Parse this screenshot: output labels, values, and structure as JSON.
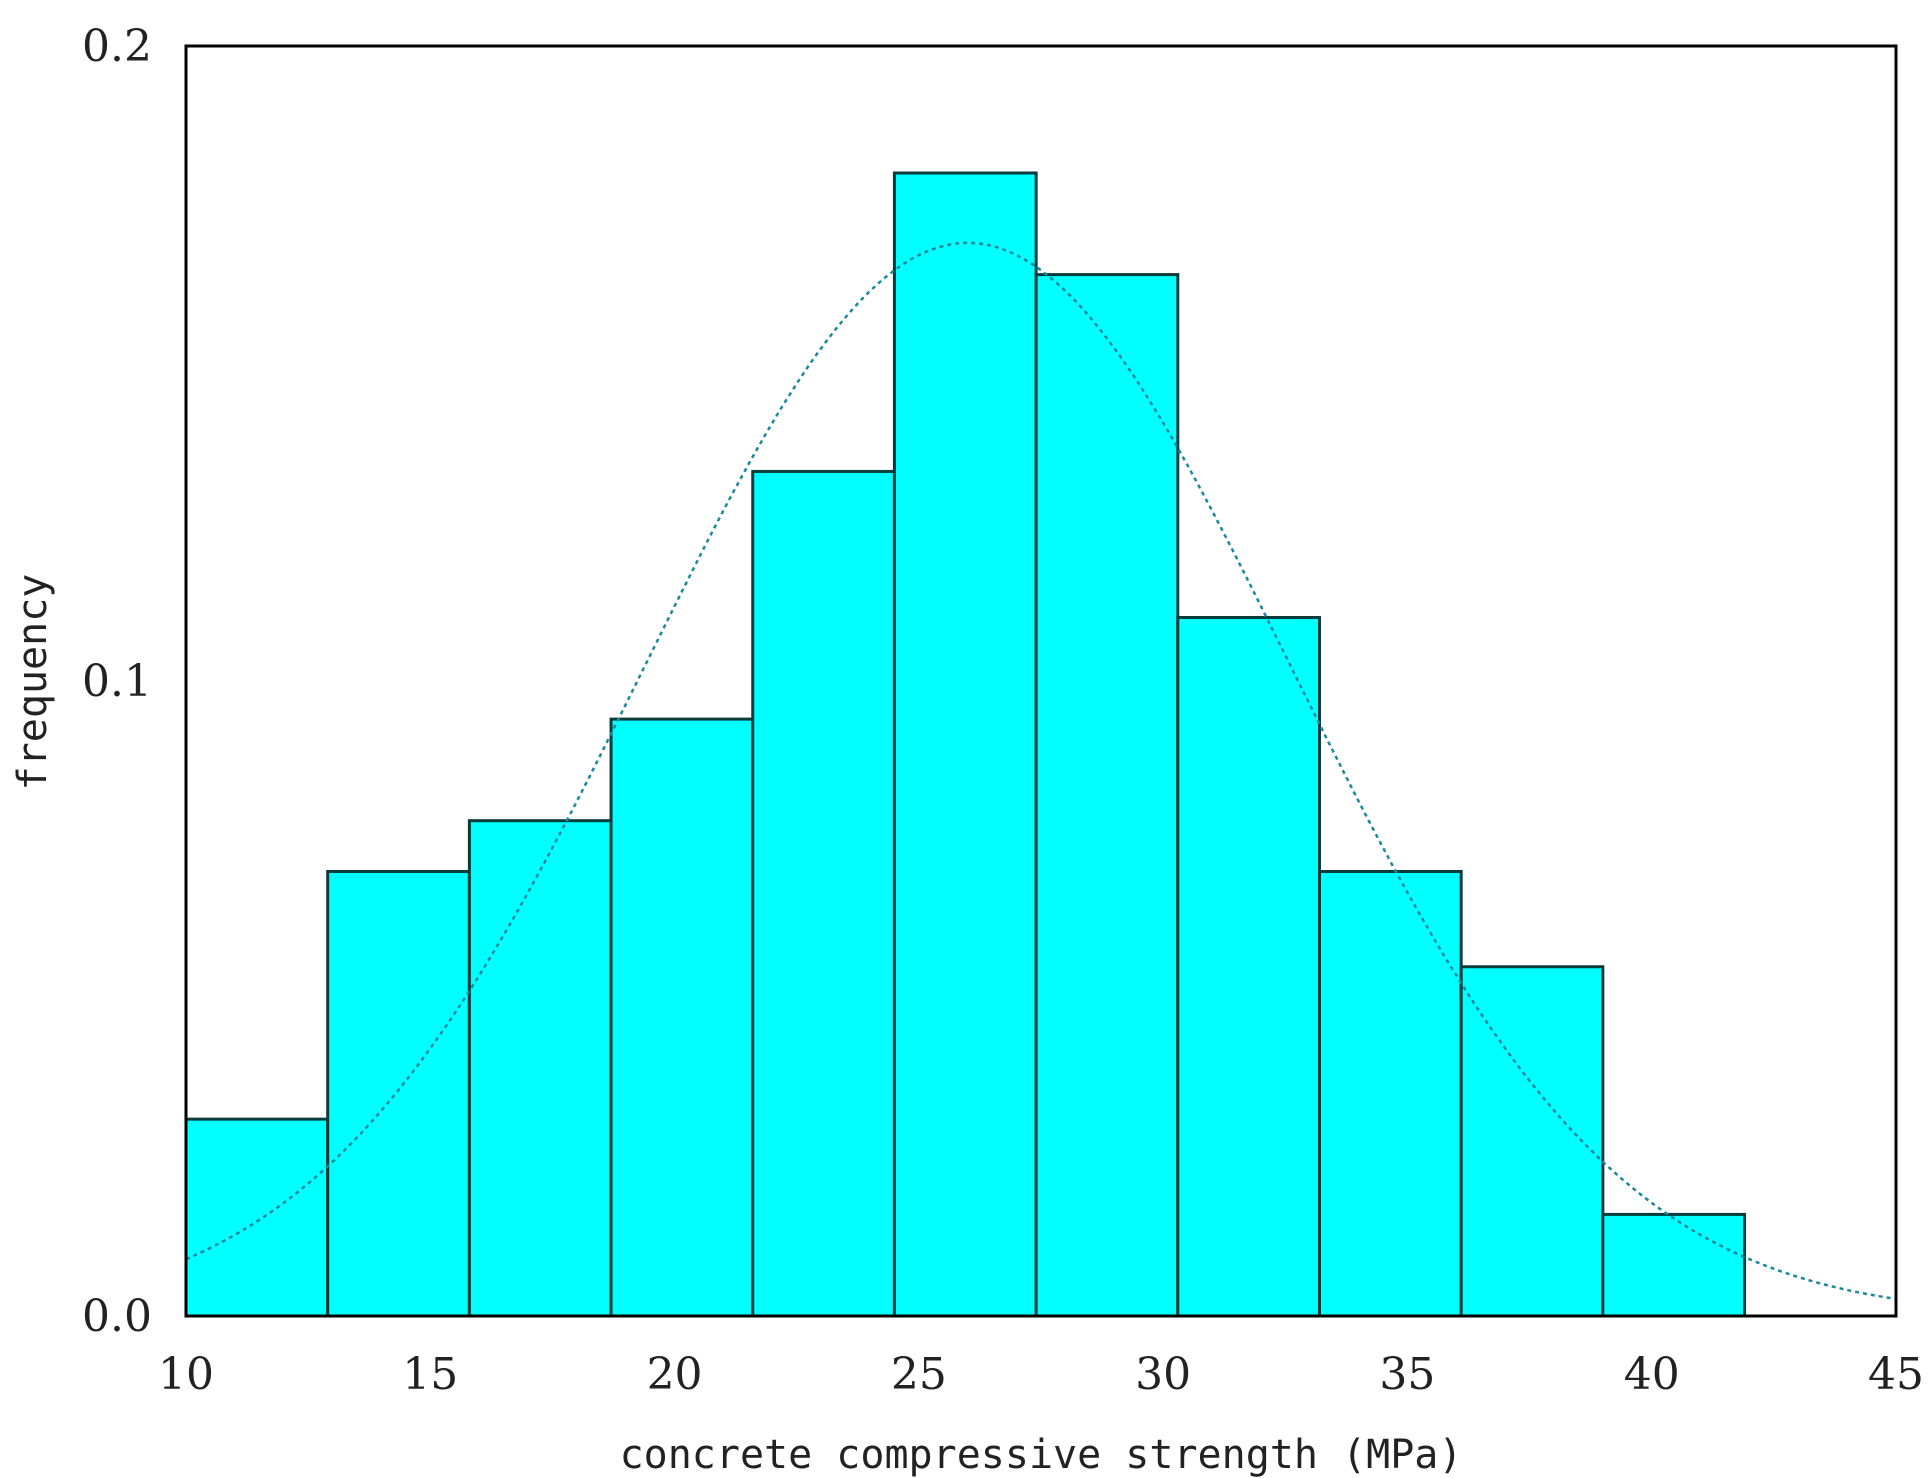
{
  "chart_data": {
    "type": "bar",
    "subtype": "histogram-with-normal-fit",
    "title": "",
    "xlabel": "concrete compressive strength (MPa)",
    "ylabel": "frequency",
    "xlim": [
      10,
      45
    ],
    "ylim": [
      0,
      0.2
    ],
    "x_ticks": [
      "10",
      "15",
      "20",
      "25",
      "30",
      "35",
      "40",
      "45"
    ],
    "y_ticks": [
      "0.0",
      "0.1",
      "0.2"
    ],
    "x_tick_values": [
      10,
      15,
      20,
      25,
      30,
      35,
      40,
      45
    ],
    "y_tick_values": [
      0,
      0.1,
      0.2
    ],
    "bins": [
      {
        "start": 10.0,
        "end": 12.9,
        "value": 0.031
      },
      {
        "start": 12.9,
        "end": 15.8,
        "value": 0.07
      },
      {
        "start": 15.8,
        "end": 18.7,
        "value": 0.078
      },
      {
        "start": 18.7,
        "end": 21.6,
        "value": 0.094
      },
      {
        "start": 21.6,
        "end": 24.5,
        "value": 0.133
      },
      {
        "start": 24.5,
        "end": 27.4,
        "value": 0.18
      },
      {
        "start": 27.4,
        "end": 30.3,
        "value": 0.164
      },
      {
        "start": 30.3,
        "end": 33.2,
        "value": 0.11
      },
      {
        "start": 33.2,
        "end": 36.1,
        "value": 0.07
      },
      {
        "start": 36.1,
        "end": 39.0,
        "value": 0.055
      },
      {
        "start": 39.0,
        "end": 41.9,
        "value": 0.016
      }
    ],
    "fit_curve": {
      "type": "normal",
      "mean": 26.0,
      "sd": 6.6,
      "peak": 0.169,
      "x_range": [
        10,
        45
      ]
    },
    "grid": false,
    "colors": {
      "bar_fill": "#00ffff",
      "bar_edge": "#0b3b3b",
      "curve": "#1a8a9a",
      "frame": "#000000"
    }
  }
}
